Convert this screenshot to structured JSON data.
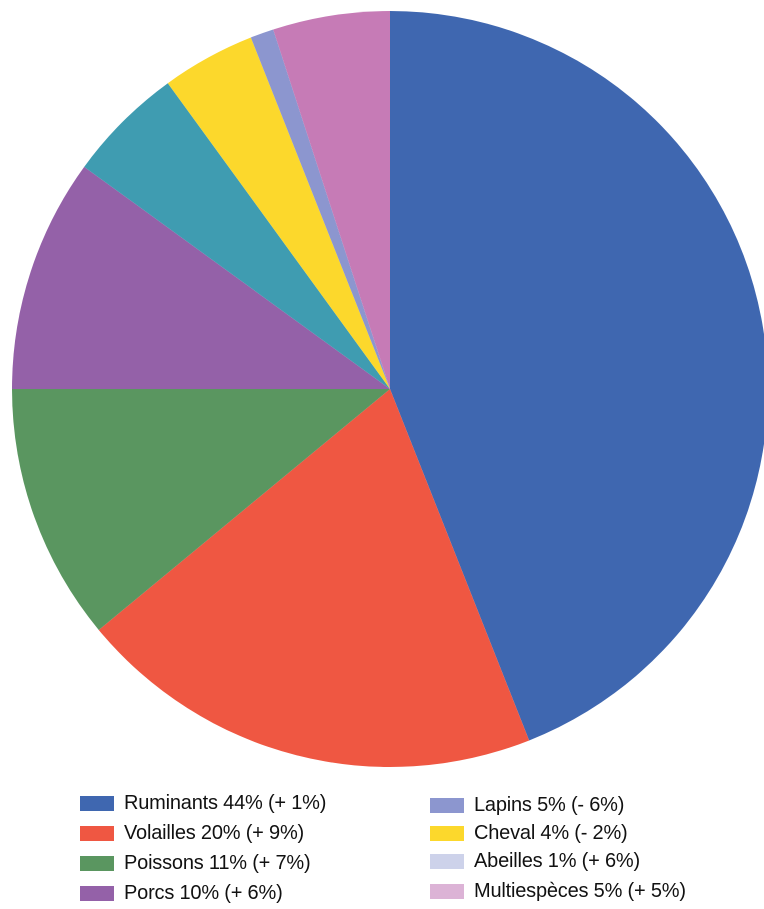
{
  "chart_data": {
    "type": "pie",
    "title": "",
    "slices": [
      {
        "name": "Ruminants",
        "value": 44,
        "legend": "Ruminants 44% (+ 1%)",
        "color": "#3f67b0"
      },
      {
        "name": "Volailles",
        "value": 20,
        "legend": "Volailles 20% (+ 9%)",
        "color": "#ef5742"
      },
      {
        "name": "Poissons",
        "value": 11,
        "legend": "Poissons 11% (+ 7%)",
        "color": "#5a9660"
      },
      {
        "name": "Porcs",
        "value": 10,
        "legend": "Porcs 10% (+ 6%)",
        "color": "#9461a8"
      },
      {
        "name": "Lapins",
        "value": 5,
        "legend": "Lapins 5% (- 6%)",
        "color": "#3f9cb1"
      },
      {
        "name": "Cheval",
        "value": 4,
        "legend": "Cheval 4% (- 2%)",
        "color": "#fcd82c"
      },
      {
        "name": "Abeilles",
        "value": 1,
        "legend": "Abeilles 1% (+ 6%)",
        "color": "#8c96cf"
      },
      {
        "name": "Multiespèces",
        "value": 5,
        "legend": "Multiespèces 5% (+ 5%)",
        "color": "#c67bb6"
      }
    ],
    "legend_swatch_colors": [
      "#3f67b0",
      "#ef5742",
      "#5a9660",
      "#9461a8",
      "#8c96cf",
      "#fcd82c",
      "#cdd2ea",
      "#dcb3d6"
    ],
    "legend_placement": "bottom, two columns"
  }
}
